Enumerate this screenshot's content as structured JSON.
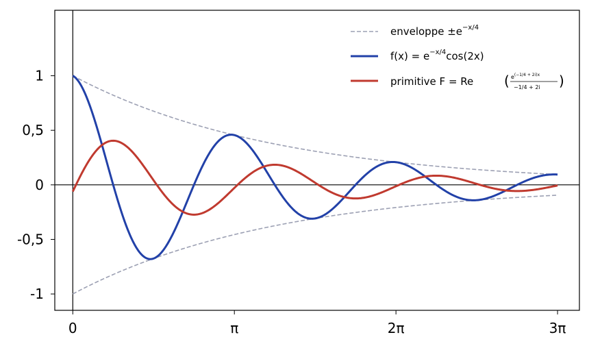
{
  "chart_data": {
    "type": "line",
    "title": "",
    "xlabel": "",
    "ylabel": "",
    "xlim": [
      -0.35,
      9.85
    ],
    "ylim": [
      -1.15,
      1.6
    ],
    "x_ticks": [
      {
        "value": 0,
        "label": "0"
      },
      {
        "value": 3.14159,
        "label": "π"
      },
      {
        "value": 6.28319,
        "label": "2π"
      },
      {
        "value": 9.42478,
        "label": "3π"
      }
    ],
    "y_ticks": [
      {
        "value": 1,
        "label": "1"
      },
      {
        "value": 0.5,
        "label": "0,5"
      },
      {
        "value": 0,
        "label": "0"
      },
      {
        "value": -0.5,
        "label": "-0,5"
      },
      {
        "value": -1,
        "label": "-1"
      }
    ],
    "x_range": [
      0,
      9.42478
    ],
    "grid": false,
    "legend_position": "top-right",
    "series": [
      {
        "name": "enveloppe ±e^{−x/4}",
        "legend_main": "enveloppe ±e",
        "legend_sup": "−x/4",
        "color": "#9ca0b3",
        "style": "dashed",
        "function": "±exp(-x/4)"
      },
      {
        "name": "f(x) = e^{−x/4}cos(2x)",
        "legend_pre": "f(x) = e",
        "legend_sup": "−x/4",
        "legend_post": "cos(2x)",
        "color": "#2241a8",
        "style": "solid",
        "function": "exp(-x/4)*cos(2x)"
      },
      {
        "name": "primitive F = Re(e^{(−1/4+2i)x} / (−1/4+2i))",
        "legend_pre": "primitive F = Re",
        "legend_num": "e",
        "legend_num_sup": "(−1/4 + 2i)x",
        "legend_den": "−1/4 + 2i",
        "color": "#c03a2f",
        "style": "solid",
        "function": "exp(-x/4)*(-cos(2x)/4 + 2 sin(2x))/(65/16)"
      }
    ]
  }
}
